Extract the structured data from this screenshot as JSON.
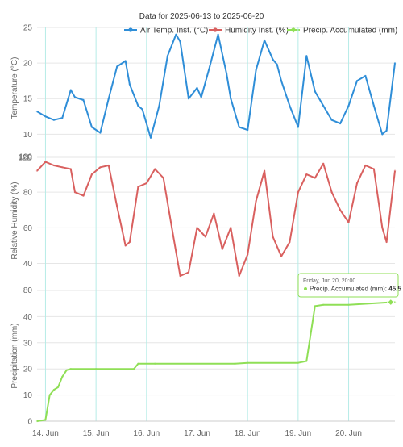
{
  "chart_data": {
    "type": "line",
    "title": "Data for 2025-06-13 to 2025-06-20",
    "legend_position": "top-right",
    "legend": [
      "Air Temp. Inst. (°C)",
      "Humidity Inst. (%)",
      "Precip. Accumulated (mm)"
    ],
    "colors": {
      "temp": "#2f8ed8",
      "humidity": "#d9605f",
      "precip": "#8fdf56",
      "grid_vertical": "#b6ece7",
      "grid_horizontal": "#e6e6e6"
    },
    "x_ticks": [
      "14. Jun",
      "15. Jun",
      "16. Jun",
      "17. Jun",
      "18. Jun",
      "19. Jun",
      "20. Jun"
    ],
    "x_range_days": [
      "2025-06-13T20:00",
      "2025-06-20T22:00"
    ],
    "panels": [
      {
        "id": "temp",
        "series_name": "Air Temp. Inst. (°C)",
        "ylabel": "Temperature (°C)",
        "ylim": [
          8,
          25
        ],
        "y_ticks": [
          10,
          15,
          20,
          25
        ],
        "x": [
          "2025-06-13T20:00",
          "2025-06-14T00:00",
          "2025-06-14T04:00",
          "2025-06-14T08:00",
          "2025-06-14T12:00",
          "2025-06-14T14:00",
          "2025-06-14T18:00",
          "2025-06-14T22:00",
          "2025-06-15T02:00",
          "2025-06-15T06:00",
          "2025-06-15T10:00",
          "2025-06-15T14:00",
          "2025-06-15T16:00",
          "2025-06-15T20:00",
          "2025-06-15T22:00",
          "2025-06-16T02:00",
          "2025-06-16T06:00",
          "2025-06-16T10:00",
          "2025-06-16T14:00",
          "2025-06-16T16:00",
          "2025-06-16T20:00",
          "2025-06-17T00:00",
          "2025-06-17T02:00",
          "2025-06-17T06:00",
          "2025-06-17T10:00",
          "2025-06-17T14:00",
          "2025-06-17T16:00",
          "2025-06-17T20:00",
          "2025-06-18T00:00",
          "2025-06-18T04:00",
          "2025-06-18T08:00",
          "2025-06-18T12:00",
          "2025-06-18T14:00",
          "2025-06-18T16:00",
          "2025-06-18T20:00",
          "2025-06-19T00:00",
          "2025-06-19T04:00",
          "2025-06-19T08:00",
          "2025-06-19T12:00",
          "2025-06-19T16:00",
          "2025-06-19T20:00",
          "2025-06-20T00:00",
          "2025-06-20T04:00",
          "2025-06-20T08:00",
          "2025-06-20T12:00",
          "2025-06-20T16:00",
          "2025-06-20T18:00",
          "2025-06-20T22:00"
        ],
        "values": [
          13.2,
          12.5,
          12.0,
          12.3,
          16.2,
          15.2,
          14.8,
          11.0,
          10.2,
          15.0,
          19.5,
          20.3,
          17.0,
          14.0,
          13.5,
          9.5,
          14.0,
          21.0,
          24.0,
          23.0,
          15.0,
          16.5,
          15.2,
          19.5,
          24.0,
          18.5,
          15.0,
          11.0,
          10.6,
          19.0,
          23.2,
          20.5,
          19.8,
          17.5,
          14.0,
          11.0,
          21.0,
          16.0,
          14.0,
          12.0,
          11.5,
          14.0,
          17.5,
          18.2,
          14.0,
          10.0,
          10.5,
          20.0
        ]
      },
      {
        "id": "humidity",
        "series_name": "Humidity Inst. (%)",
        "ylabel": "Relative Humidity (%)",
        "ylim": [
          28,
          100
        ],
        "y_ticks": [
          40,
          60,
          80,
          100
        ],
        "x": [
          "2025-06-13T20:00",
          "2025-06-14T00:00",
          "2025-06-14T04:00",
          "2025-06-14T08:00",
          "2025-06-14T12:00",
          "2025-06-14T14:00",
          "2025-06-14T18:00",
          "2025-06-14T22:00",
          "2025-06-15T02:00",
          "2025-06-15T06:00",
          "2025-06-15T10:00",
          "2025-06-15T14:00",
          "2025-06-15T16:00",
          "2025-06-15T20:00",
          "2025-06-16T00:00",
          "2025-06-16T04:00",
          "2025-06-16T08:00",
          "2025-06-16T12:00",
          "2025-06-16T16:00",
          "2025-06-16T20:00",
          "2025-06-17T00:00",
          "2025-06-17T04:00",
          "2025-06-17T08:00",
          "2025-06-17T12:00",
          "2025-06-17T16:00",
          "2025-06-17T20:00",
          "2025-06-18T00:00",
          "2025-06-18T04:00",
          "2025-06-18T08:00",
          "2025-06-18T12:00",
          "2025-06-18T16:00",
          "2025-06-18T20:00",
          "2025-06-19T00:00",
          "2025-06-19T04:00",
          "2025-06-19T08:00",
          "2025-06-19T12:00",
          "2025-06-19T16:00",
          "2025-06-19T20:00",
          "2025-06-20T00:00",
          "2025-06-20T04:00",
          "2025-06-20T08:00",
          "2025-06-20T12:00",
          "2025-06-20T16:00",
          "2025-06-20T18:00",
          "2025-06-20T22:00"
        ],
        "values": [
          92,
          97,
          95,
          94,
          93,
          80,
          78,
          90,
          94,
          95,
          72,
          50,
          52,
          83,
          85,
          93,
          88,
          60,
          33,
          35,
          60,
          55,
          68,
          48,
          60,
          33,
          45,
          75,
          92,
          55,
          44,
          52,
          80,
          90,
          88,
          96,
          80,
          70,
          63,
          85,
          95,
          93,
          60,
          52,
          92
        ]
      },
      {
        "id": "precip",
        "series_name": "Precip. Accumulated (mm)",
        "ylabel": "Precipitation (mm)",
        "ylim": [
          0,
          50
        ],
        "y_ticks": [
          0,
          10,
          20,
          30,
          40
        ],
        "x": [
          "2025-06-13T20:00",
          "2025-06-14T00:00",
          "2025-06-14T02:00",
          "2025-06-14T04:00",
          "2025-06-14T06:00",
          "2025-06-14T08:00",
          "2025-06-14T10:00",
          "2025-06-14T12:00",
          "2025-06-15T00:00",
          "2025-06-15T18:00",
          "2025-06-15T20:00",
          "2025-06-16T04:00",
          "2025-06-17T18:00",
          "2025-06-18T00:00",
          "2025-06-19T00:00",
          "2025-06-19T04:00",
          "2025-06-19T08:00",
          "2025-06-19T12:00",
          "2025-06-20T00:00",
          "2025-06-20T20:00",
          "2025-06-20T22:00"
        ],
        "values": [
          0,
          0.5,
          10,
          12,
          13,
          17,
          19.5,
          20,
          20,
          20,
          22,
          22,
          22,
          22.3,
          22.3,
          23,
          44,
          44.5,
          44.5,
          45.5,
          45.5
        ]
      }
    ],
    "tooltip": {
      "date": "Friday, Jun 20, 20:00",
      "label": "Precip. Accumulated (mm): ",
      "value": "45.5",
      "x": "2025-06-20T20:00"
    }
  }
}
